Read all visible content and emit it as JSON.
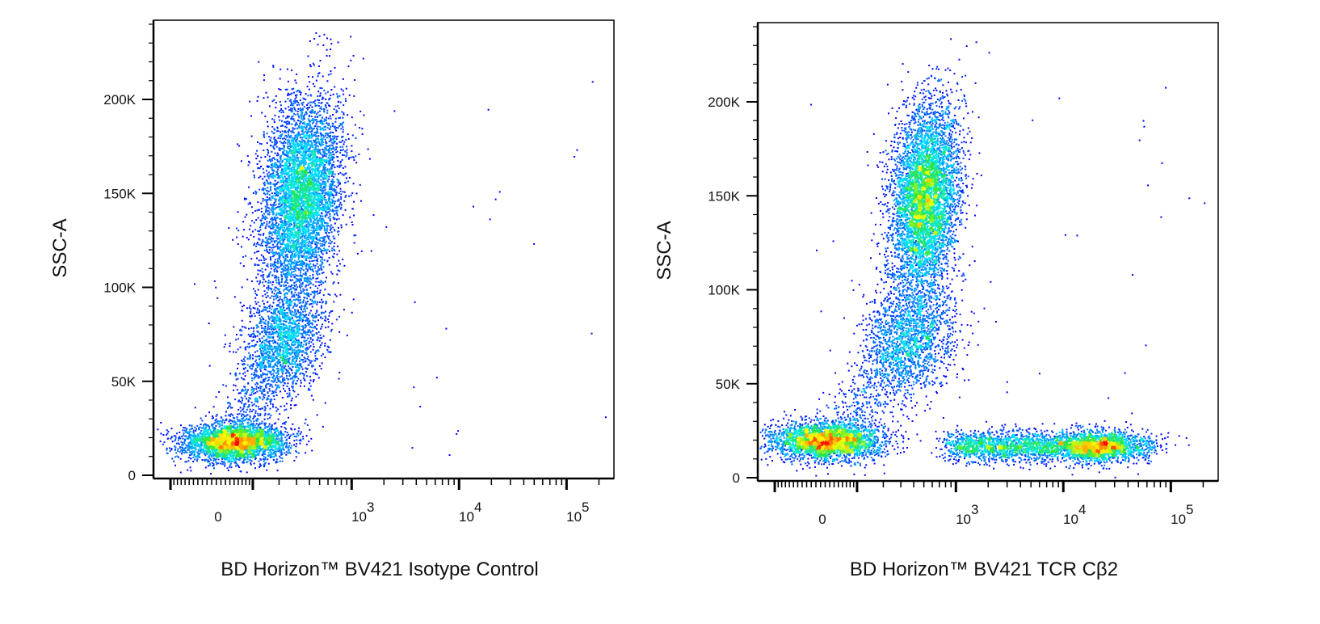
{
  "chart_data": [
    {
      "type": "scatter",
      "subtype": "pseudocolor density dot plot",
      "xlabel": "BD Horizon™ BV421 Isotype Control",
      "ylabel": "SSC-A",
      "x_scale": "biexponential",
      "xlim": [
        -160,
        260000
      ],
      "ylim": [
        -2000,
        242000
      ],
      "x_ticks": [
        {
          "label": "0"
        },
        {
          "base": "10",
          "exp": "3"
        },
        {
          "base": "10",
          "exp": "4"
        },
        {
          "base": "10",
          "exp": "5"
        }
      ],
      "y_ticks": [
        "0",
        "50K",
        "100K",
        "150K",
        "200K"
      ],
      "grid": false,
      "legend": "none",
      "populations": [
        {
          "x": 50,
          "y": 18000
        },
        {
          "x": 330,
          "y": 150000
        },
        {
          "x": 230,
          "y": 75000
        }
      ]
    },
    {
      "type": "scatter",
      "subtype": "pseudocolor density dot plot",
      "xlabel": "BD Horizon™ BV421 TCR Cβ2",
      "ylabel": "SSC-A",
      "x_scale": "biexponential",
      "xlim": [
        -160,
        260000
      ],
      "ylim": [
        -2000,
        242000
      ],
      "x_ticks": [
        {
          "label": "0"
        },
        {
          "base": "10",
          "exp": "3"
        },
        {
          "base": "10",
          "exp": "4"
        },
        {
          "base": "10",
          "exp": "5"
        }
      ],
      "y_ticks": [
        "0",
        "50K",
        "100K",
        "150K",
        "200K"
      ],
      "grid": false,
      "legend": "none",
      "populations": [
        {
          "x": 20,
          "y": 20000
        },
        {
          "x": 500,
          "y": 148000
        },
        {
          "x": 370,
          "y": 75000
        },
        {
          "x": 20000,
          "y": 17000
        }
      ]
    }
  ],
  "colors": {
    "low": "#0000ff",
    "mid_low": "#00e0ff",
    "mid": "#30e000",
    "mid_high": "#ffff00",
    "high": "#ff0000",
    "axis": "#000000"
  }
}
